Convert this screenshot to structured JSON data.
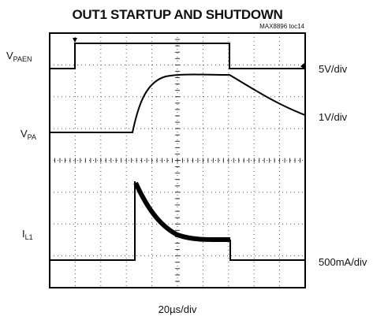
{
  "title": "OUT1 STARTUP AND SHUTDOWN",
  "note": "MAX8896 toc14",
  "traces": [
    {
      "label": {
        "main": "V",
        "sub": "PAEN"
      },
      "scale": "5V/div"
    },
    {
      "label": {
        "main": "V",
        "sub": "PA"
      },
      "scale": "1V/div"
    },
    {
      "label": {
        "main": "I",
        "sub": "L1"
      },
      "scale": "500mA/div"
    }
  ],
  "xscale": "20µs/div"
}
